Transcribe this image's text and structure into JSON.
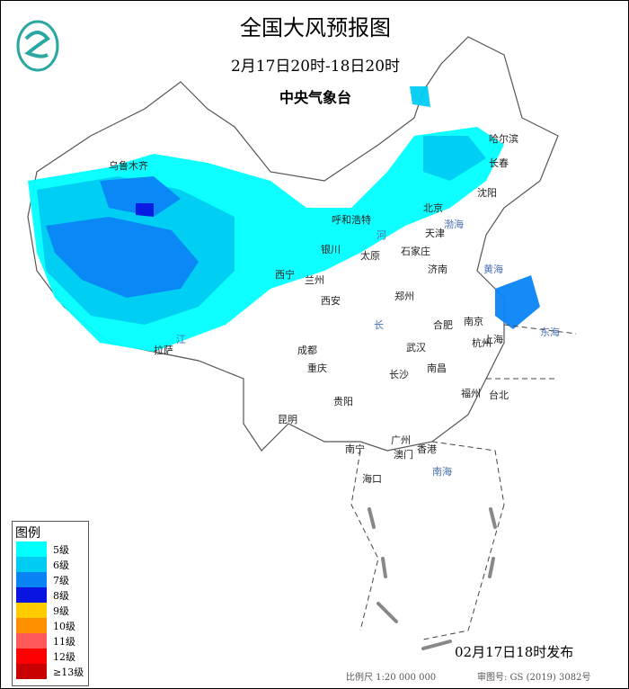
{
  "header": {
    "title": "全国大风预报图",
    "period": "2月17日20时-18日20时",
    "agency": "中央气象台"
  },
  "legend": {
    "title": "图例",
    "items": [
      {
        "label": "5级",
        "color": "#00ffff"
      },
      {
        "label": "6级",
        "color": "#00ccf2"
      },
      {
        "label": "7级",
        "color": "#0a84f5"
      },
      {
        "label": "8级",
        "color": "#0a14e0"
      },
      {
        "label": "9级",
        "color": "#ffcc00"
      },
      {
        "label": "10级",
        "color": "#ff9000"
      },
      {
        "label": "11级",
        "color": "#ff5a5a"
      },
      {
        "label": "12级",
        "color": "#ff0000"
      },
      {
        "label": "≥13级",
        "color": "#c80000"
      }
    ]
  },
  "cities": [
    "乌鲁木齐",
    "哈尔滨",
    "长春",
    "沈阳",
    "北京",
    "呼和浩特",
    "天津",
    "银川",
    "太原",
    "石家庄",
    "济南",
    "西宁",
    "兰州",
    "西安",
    "郑州",
    "合肥",
    "南京",
    "上海",
    "杭州",
    "武汉",
    "成都",
    "重庆",
    "长沙",
    "南昌",
    "福州",
    "台北",
    "拉萨",
    "贵阳",
    "昆明",
    "南宁",
    "广州",
    "香港",
    "澳门",
    "海口"
  ],
  "seas": [
    "渤海",
    "黄海",
    "东海",
    "南海",
    "长",
    "江",
    "河"
  ],
  "footer": {
    "issued": "02月17日18时发布",
    "scale": "比例尺 1:20 000 000",
    "review": "审图号: GS (2019) 3082号"
  }
}
